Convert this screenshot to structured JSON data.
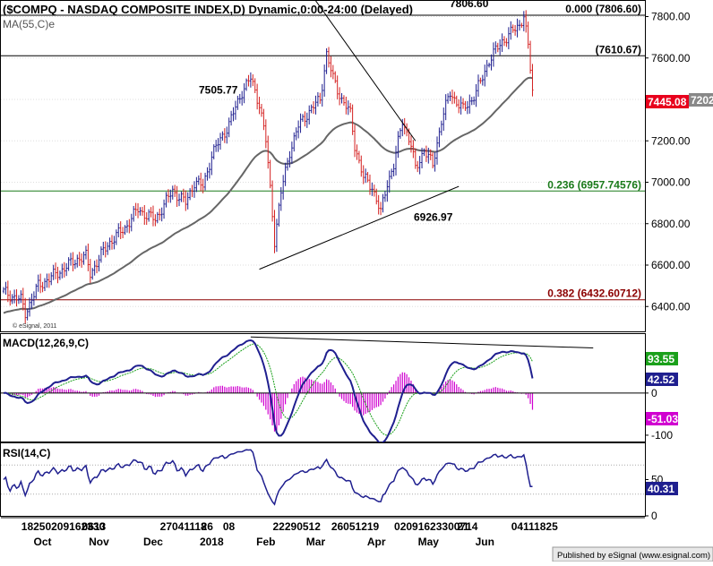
{
  "chart_data": [
    {
      "type": "candlestick",
      "title": "($COMPQ - NASDAQ COMPOSITE INDEX,D) Dynamic,0:00-24:00 (Delayed)",
      "indicator_label": "MA(55,C)e",
      "copyright": "© eSignal, 2011",
      "ylim": [
        6280,
        7880
      ],
      "y_ticks": [
        {
          "v": 7800,
          "label": "7800.00"
        },
        {
          "v": 7600,
          "label": "7600.00"
        },
        {
          "v": 7400,
          "label": "7400.00"
        },
        {
          "v": 7200,
          "label": "7200.00"
        },
        {
          "v": 7000,
          "label": "7000.00"
        },
        {
          "v": 6800,
          "label": "6800.00"
        },
        {
          "v": 6600,
          "label": "6600.00"
        },
        {
          "v": 6400,
          "label": "6400.00"
        }
      ],
      "fib_levels": [
        {
          "value": 7806.6,
          "label": "0.000 (7806.60)",
          "color": "#000000"
        },
        {
          "value": 7610.67,
          "label": "(7610.67)",
          "color": "#000000"
        },
        {
          "value": 6957.74576,
          "label": "0.236 (6957.74576)",
          "color": "#1a7a1a"
        },
        {
          "value": 6432.60712,
          "label": "0.382 (6432.60712)",
          "color": "#8b0000"
        }
      ],
      "annotations": [
        {
          "text": "7806.60",
          "value": 7806.6
        },
        {
          "text": "7505.77",
          "value": 7505.77
        },
        {
          "text": "6926.97",
          "value": 6926.97
        }
      ],
      "last_price": {
        "value": 7445.08,
        "label": "7445.08",
        "ma_label": "7202",
        "color": "#e8001c"
      },
      "up_color": "#1f1f8f",
      "down_color": "#d42020",
      "ma_color": "#666666",
      "trendlines": [
        {
          "from": {
            "bar": 139,
            "v": 7950
          },
          "to": {
            "bar": 190,
            "v": 7200
          }
        },
        {
          "from": {
            "bar": 118,
            "v": 6580
          },
          "to": {
            "bar": 210,
            "v": 6980
          }
        }
      ]
    },
    {
      "type": "line",
      "name_label": "MACD(12,26,9,C)",
      "ylim": [
        -115,
        140
      ],
      "y_ticks": [
        {
          "v": 0,
          "label": "0"
        },
        {
          "v": -100,
          "label": "-100"
        }
      ],
      "values_display": [
        {
          "label": "93.55",
          "color": "#1aa01a",
          "value": 93.55
        },
        {
          "label": "42.52",
          "color": "#1f1f8f",
          "value": 42.52
        },
        {
          "label": "-51.03",
          "color": "#d000d0",
          "value": -51.03
        }
      ],
      "macd_color": "#1f1f8f",
      "signal_color": "#1aa01a",
      "hist_color": "#d000d0",
      "trendline": {
        "from": {
          "bar": 114,
          "v": 133
        },
        "to": {
          "bar": 272,
          "v": 107
        }
      }
    },
    {
      "type": "line",
      "name_label": "RSI(14,C)",
      "ylim": [
        0,
        100
      ],
      "y_ticks": [
        {
          "v": 50,
          "label": "50"
        },
        {
          "v": 0,
          "label": "0"
        }
      ],
      "guides": [
        70,
        30
      ],
      "value_display": {
        "label": "40.31",
        "value": 40.31
      },
      "line_color": "#1f1f8f"
    }
  ],
  "x_axis": {
    "day_groups": [
      {
        "bar": 9,
        "text": "18250209162330"
      },
      {
        "bar": 37,
        "text": "0613"
      },
      {
        "bar": 73,
        "text": "27041118"
      },
      {
        "bar": 92,
        "text": "26"
      },
      {
        "bar": 102,
        "text": "08"
      },
      {
        "bar": 125,
        "text": "22290512"
      },
      {
        "bar": 152,
        "text": "26051219"
      },
      {
        "bar": 181,
        "text": "02091623300714"
      },
      {
        "bar": 210,
        "text": "21"
      },
      {
        "bar": 235,
        "text": "04111825"
      }
    ],
    "months": [
      {
        "bar": 18,
        "text": "Oct"
      },
      {
        "bar": 44,
        "text": "Nov"
      },
      {
        "bar": 69,
        "text": "Dec"
      },
      {
        "bar": 96,
        "text": "2018"
      },
      {
        "bar": 121,
        "text": "Feb"
      },
      {
        "bar": 144,
        "text": "Mar"
      },
      {
        "bar": 172,
        "text": "Apr"
      },
      {
        "bar": 196,
        "text": "May"
      },
      {
        "bar": 222,
        "text": "Jun"
      }
    ]
  },
  "footer": "Published by eSignal (www.esignal.com)"
}
